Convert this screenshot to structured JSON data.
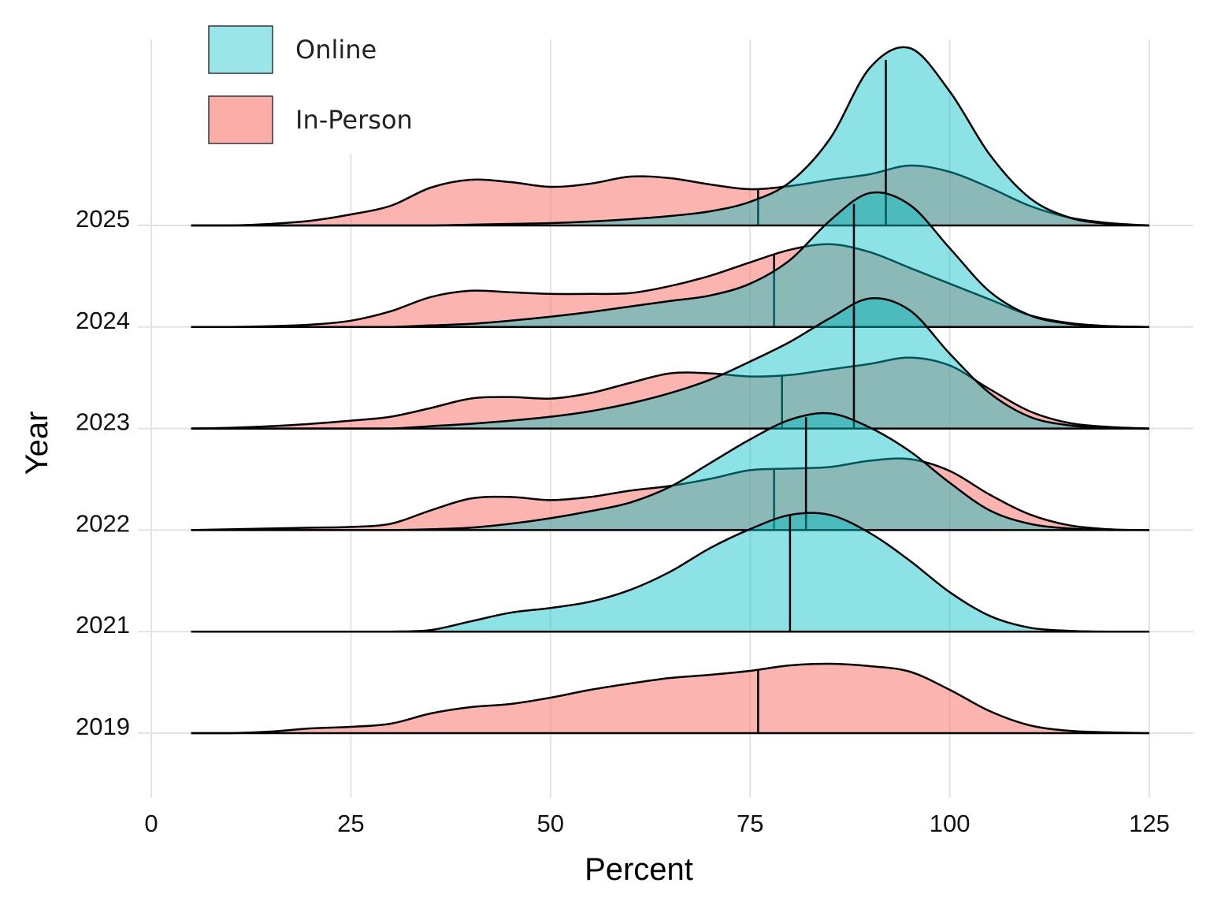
{
  "chart_data": {
    "type": "ridgeline-density",
    "xlabel": "Percent",
    "ylabel": "Year",
    "xlim": [
      0,
      125
    ],
    "x_ticks": [
      0,
      25,
      50,
      75,
      100,
      125
    ],
    "x_tick_labels": [
      "0",
      "25",
      "50",
      "75",
      "100",
      "125"
    ],
    "grid": true,
    "legend": {
      "placement": "top-left",
      "entries": [
        {
          "name": "Online",
          "color": "#00BFC4"
        },
        {
          "name": "In-Person",
          "color": "#F8766D"
        }
      ]
    },
    "colors": {
      "online": "#00BFC4",
      "in_person": "#F8766D",
      "outline": "#000000"
    },
    "density_x": [
      5,
      10,
      15,
      20,
      25,
      30,
      35,
      40,
      45,
      50,
      55,
      60,
      65,
      70,
      75,
      80,
      85,
      90,
      95,
      100,
      105,
      110,
      115,
      120,
      125
    ],
    "rows": [
      {
        "year": "2025",
        "in_person": {
          "median": 76,
          "density_rel": [
            0,
            0,
            2,
            6,
            14,
            25,
            48,
            58,
            55,
            49,
            53,
            62,
            60,
            52,
            46,
            50,
            58,
            65,
            76,
            68,
            48,
            25,
            10,
            3,
            0
          ]
        },
        "online": {
          "median": 92,
          "density_rel": [
            0,
            0,
            0,
            0,
            0,
            0,
            0,
            1,
            2,
            3,
            5,
            8,
            12,
            18,
            30,
            55,
            110,
            200,
            225,
            170,
            90,
            35,
            10,
            2,
            0
          ]
        }
      },
      {
        "year": "2024",
        "in_person": {
          "median": 78,
          "density_rel": [
            0,
            0,
            1,
            3,
            8,
            20,
            38,
            46,
            44,
            42,
            42,
            43,
            52,
            65,
            82,
            98,
            105,
            95,
            75,
            55,
            35,
            15,
            5,
            1,
            0
          ]
        },
        "online": {
          "median": 88,
          "density_rel": [
            0,
            0,
            0,
            0,
            0,
            0,
            2,
            4,
            8,
            13,
            19,
            26,
            33,
            40,
            55,
            85,
            135,
            170,
            155,
            100,
            45,
            15,
            4,
            1,
            0
          ]
        }
      },
      {
        "year": "2023",
        "in_person": {
          "median": 79,
          "density_rel": [
            0,
            1,
            3,
            6,
            10,
            15,
            26,
            38,
            40,
            38,
            45,
            58,
            70,
            70,
            66,
            68,
            75,
            82,
            90,
            80,
            50,
            22,
            7,
            2,
            0
          ]
        },
        "online": {
          "median": 88,
          "density_rel": [
            0,
            0,
            0,
            0,
            0,
            0,
            3,
            6,
            10,
            15,
            22,
            32,
            45,
            62,
            85,
            110,
            140,
            165,
            150,
            95,
            45,
            15,
            4,
            1,
            0
          ]
        }
      },
      {
        "year": "2022",
        "in_person": {
          "median": 78,
          "density_rel": [
            0,
            1,
            2,
            3,
            4,
            8,
            25,
            40,
            42,
            38,
            42,
            50,
            56,
            65,
            76,
            78,
            80,
            88,
            90,
            75,
            45,
            20,
            6,
            1,
            0
          ]
        },
        "online": {
          "median": 82,
          "density_rel": [
            0,
            0,
            0,
            0,
            0,
            0,
            1,
            3,
            8,
            15,
            24,
            35,
            55,
            85,
            115,
            140,
            148,
            130,
            100,
            60,
            25,
            8,
            2,
            0,
            0
          ]
        }
      },
      {
        "year": "2021",
        "online": {
          "median": 80,
          "density_rel": [
            0,
            0,
            0,
            0,
            0,
            0,
            2,
            13,
            24,
            30,
            38,
            53,
            76,
            106,
            130,
            148,
            148,
            125,
            90,
            50,
            20,
            5,
            1,
            0,
            0
          ]
        }
      },
      {
        "year": "2019",
        "in_person": {
          "median": 76,
          "density_rel": [
            0,
            0,
            2,
            6,
            8,
            12,
            25,
            33,
            37,
            45,
            55,
            63,
            70,
            74,
            79,
            86,
            88,
            85,
            78,
            55,
            28,
            10,
            3,
            1,
            0
          ]
        }
      }
    ]
  }
}
